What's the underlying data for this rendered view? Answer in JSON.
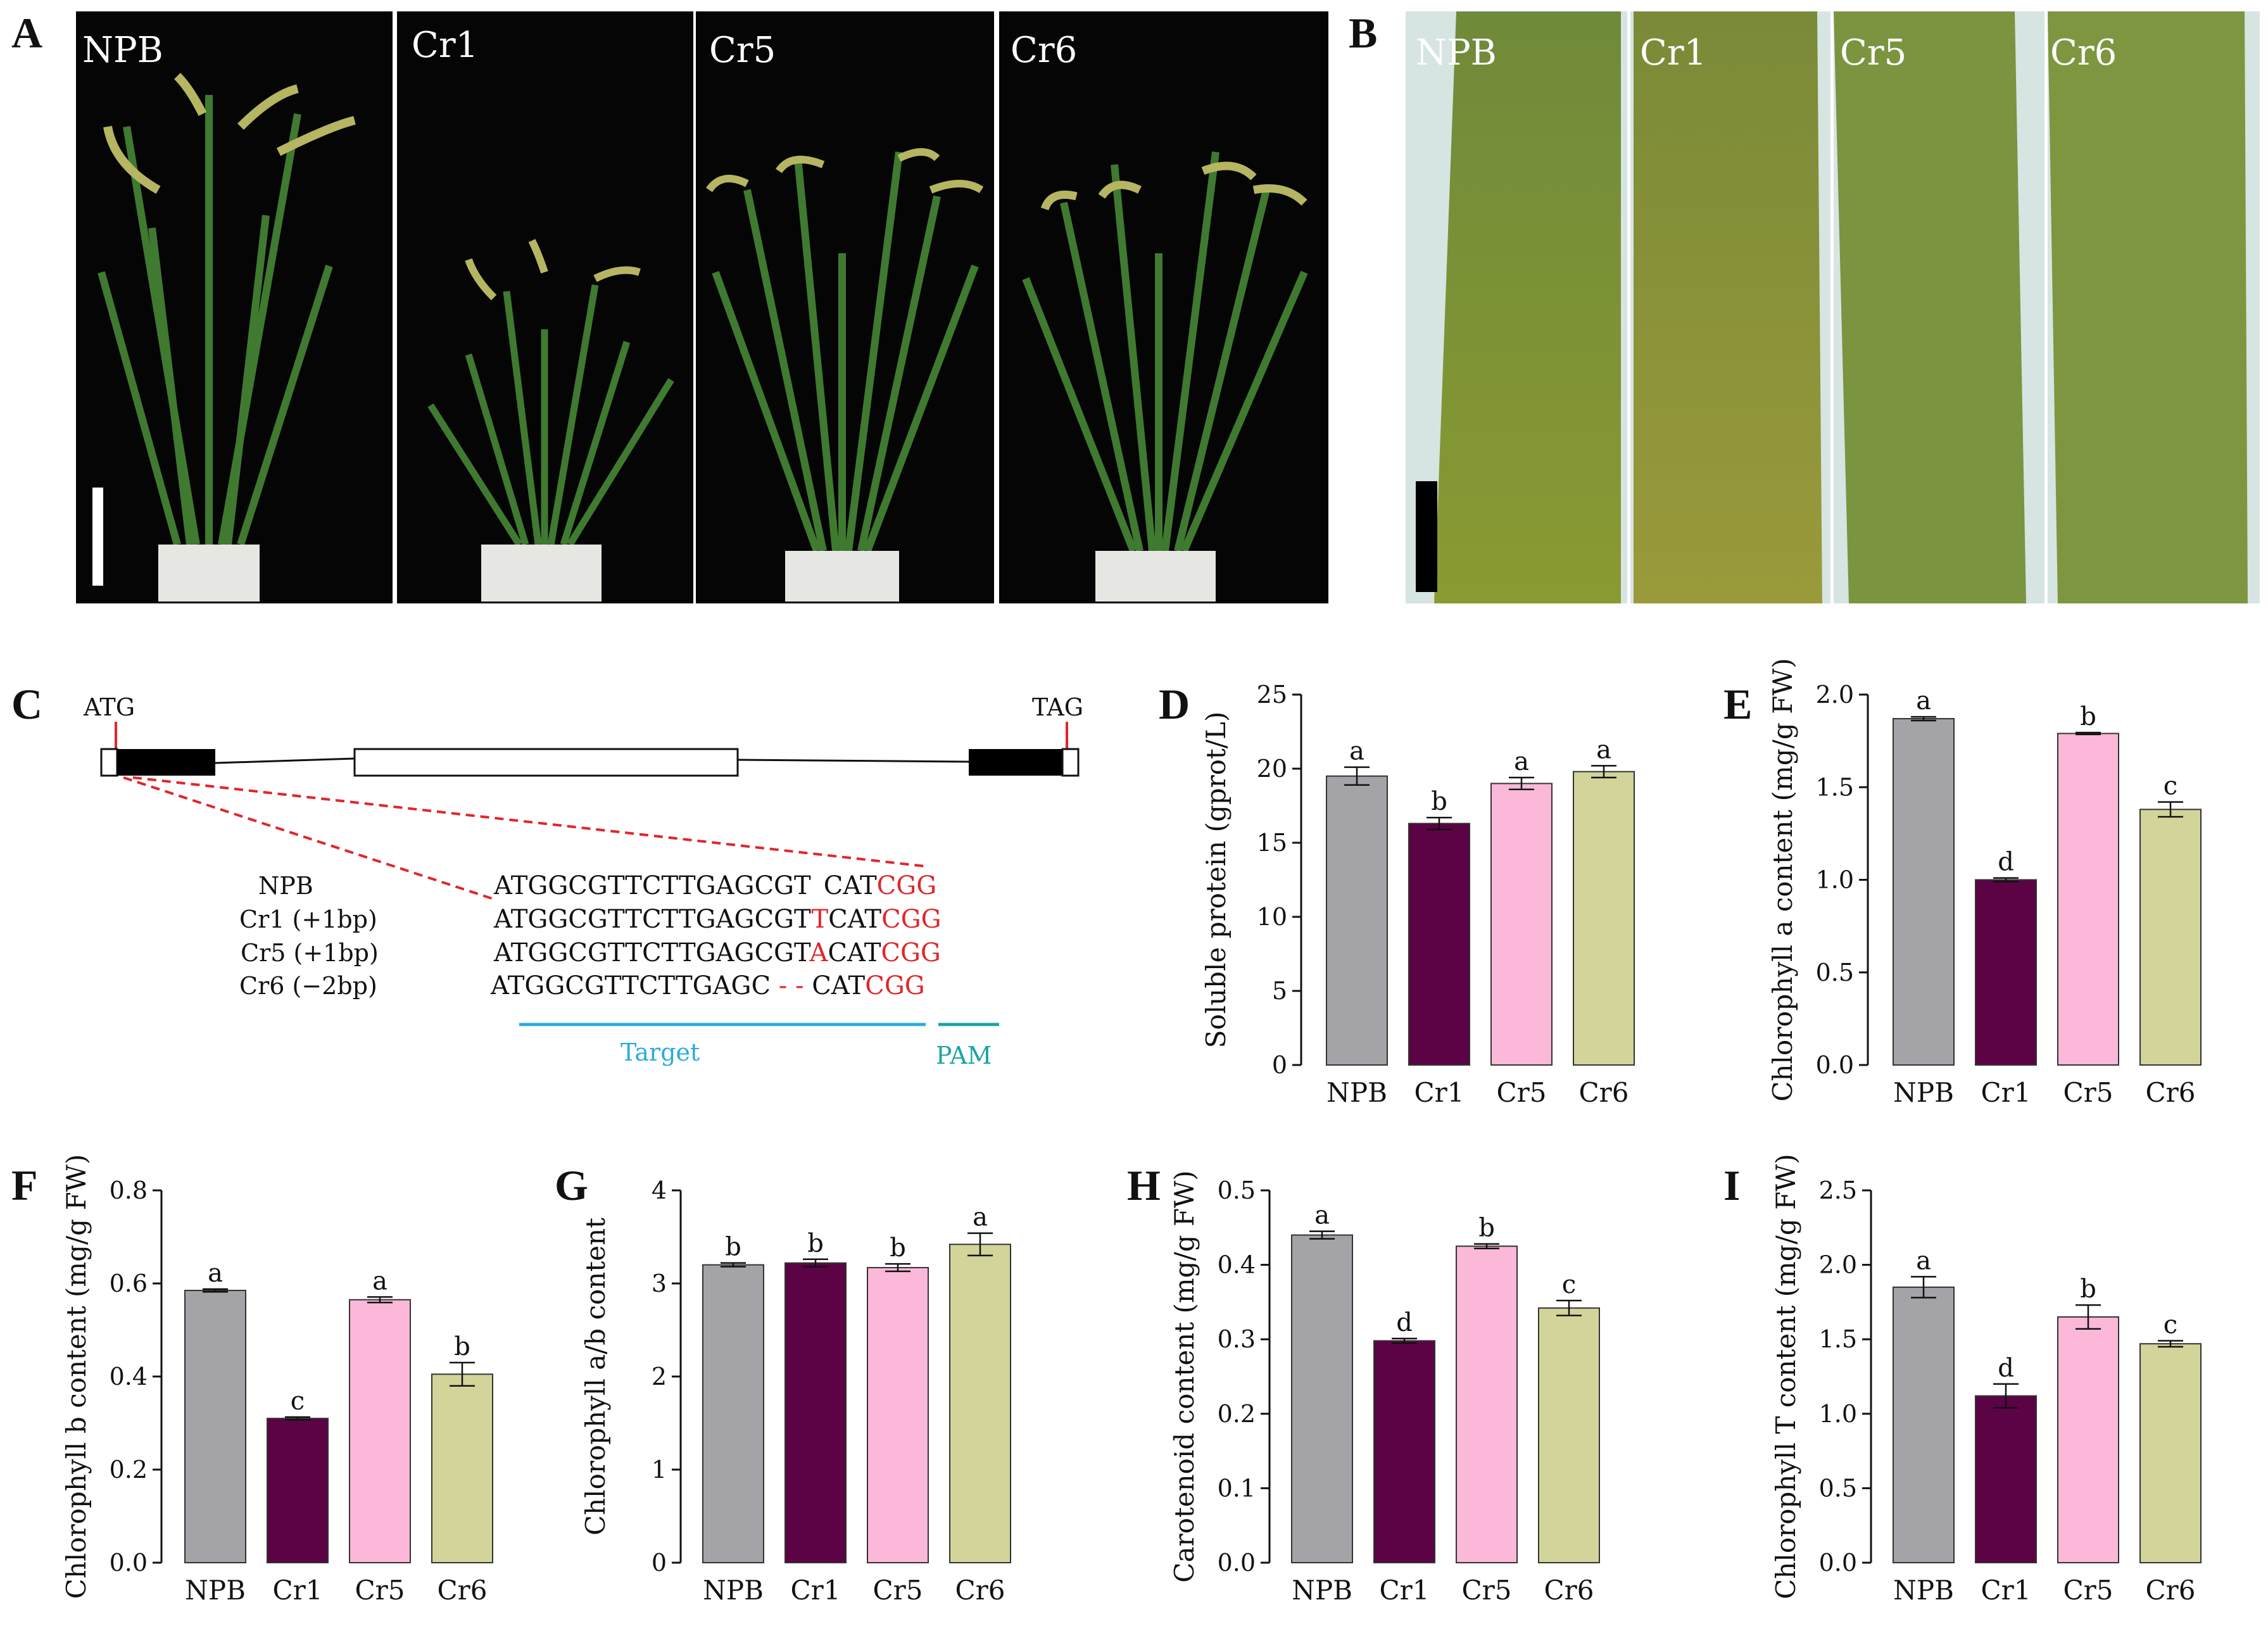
{
  "panel_A": {
    "letter": "A",
    "photos": [
      "NPB",
      "Cr1",
      "Cr5",
      "Cr6"
    ]
  },
  "panel_B": {
    "letter": "B",
    "photos": [
      "NPB",
      "Cr1",
      "Cr5",
      "Cr6"
    ]
  },
  "panel_C": {
    "letter": "C",
    "start_codon": "ATG",
    "stop_codon": "TAG",
    "rows": [
      {
        "label": "NPB",
        "seq_pre": "ATGGCGTTCTTGAGCGT",
        "mut": "",
        "seq_post": "CAT",
        "pam": "CGG"
      },
      {
        "label": "Cr1 (+1bp)",
        "seq_pre": "ATGGCGTTCTTGAGCGT",
        "mut": "T",
        "seq_post": "CAT",
        "pam": "CGG"
      },
      {
        "label": "Cr5 (+1bp)",
        "seq_pre": "ATGGCGTTCTTGAGCGT",
        "mut": "A",
        "seq_post": "CAT",
        "pam": "CGG"
      },
      {
        "label": "Cr6 (−2bp)",
        "seq_pre": "ATGGCGTTCTTGAGC",
        "mut": "- -",
        "seq_post": "CAT",
        "pam": "CGG"
      }
    ],
    "target_label": "Target",
    "pam_label": "PAM",
    "colors": {
      "mutation": "#e0262a",
      "target": "#29abe2",
      "pam": "#1aa3a3",
      "dashed": "#e0262a"
    }
  },
  "colors": {
    "NPB": "#a4a3a8",
    "Cr1": "#5b0345",
    "Cr5": "#fbb8d8",
    "Cr6": "#d3d49a"
  },
  "chart_data": [
    {
      "panel": "D",
      "type": "bar",
      "categories": [
        "NPB",
        "Cr1",
        "Cr5",
        "Cr6"
      ],
      "values": [
        19.5,
        16.3,
        19.0,
        19.8
      ],
      "errors": [
        0.6,
        0.4,
        0.4,
        0.4
      ],
      "significance": [
        "a",
        "b",
        "a",
        "a"
      ],
      "ylabel": "Soluble protein (gprot/L)",
      "ylim": [
        0,
        25
      ],
      "yticks": [
        "0",
        "5",
        "10",
        "15",
        "20",
        "25"
      ]
    },
    {
      "panel": "E",
      "type": "bar",
      "categories": [
        "NPB",
        "Cr1",
        "Cr5",
        "Cr6"
      ],
      "values": [
        1.87,
        1.0,
        1.79,
        1.38
      ],
      "errors": [
        0.01,
        0.01,
        0.005,
        0.04
      ],
      "significance": [
        "a",
        "d",
        "b",
        "c"
      ],
      "ylabel": "Chlorophyll a content (mg/g FW)",
      "ylim": [
        0,
        2.0
      ],
      "yticks": [
        "0.0",
        "0.5",
        "1.0",
        "1.5",
        "2.0"
      ]
    },
    {
      "panel": "F",
      "type": "bar",
      "categories": [
        "NPB",
        "Cr1",
        "Cr5",
        "Cr6"
      ],
      "values": [
        0.585,
        0.31,
        0.565,
        0.405
      ],
      "errors": [
        0.003,
        0.003,
        0.006,
        0.025
      ],
      "significance": [
        "a",
        "c",
        "a",
        "b"
      ],
      "ylabel": "Chlorophyll b content (mg/g FW)",
      "ylim": [
        0,
        0.8
      ],
      "yticks": [
        "0.0",
        "0.2",
        "0.4",
        "0.6",
        "0.8"
      ]
    },
    {
      "panel": "G",
      "type": "bar",
      "categories": [
        "NPB",
        "Cr1",
        "Cr5",
        "Cr6"
      ],
      "values": [
        3.2,
        3.22,
        3.17,
        3.42
      ],
      "errors": [
        0.02,
        0.04,
        0.04,
        0.12
      ],
      "significance": [
        "b",
        "b",
        "b",
        "a"
      ],
      "ylabel": "Chlorophyll a/b content",
      "ylim": [
        0,
        4
      ],
      "yticks": [
        "0",
        "1",
        "2",
        "3",
        "4"
      ]
    },
    {
      "panel": "H",
      "type": "bar",
      "categories": [
        "NPB",
        "Cr1",
        "Cr5",
        "Cr6"
      ],
      "values": [
        0.44,
        0.298,
        0.425,
        0.342
      ],
      "errors": [
        0.005,
        0.003,
        0.003,
        0.01
      ],
      "significance": [
        "a",
        "d",
        "b",
        "c"
      ],
      "ylabel": "Carotenoid content (mg/g FW)",
      "ylim": [
        0,
        0.5
      ],
      "yticks": [
        "0.0",
        "0.1",
        "0.2",
        "0.3",
        "0.4",
        "0.5"
      ]
    },
    {
      "panel": "I",
      "type": "bar",
      "categories": [
        "NPB",
        "Cr1",
        "Cr5",
        "Cr6"
      ],
      "values": [
        1.85,
        1.12,
        1.65,
        1.47
      ],
      "errors": [
        0.07,
        0.08,
        0.08,
        0.02
      ],
      "significance": [
        "a",
        "d",
        "b",
        "c"
      ],
      "ylabel": "Chlorophyll T content (mg/g FW)",
      "ylim": [
        0,
        2.5
      ],
      "yticks": [
        "0.0",
        "0.5",
        "1.0",
        "1.5",
        "2.0",
        "2.5"
      ]
    }
  ]
}
